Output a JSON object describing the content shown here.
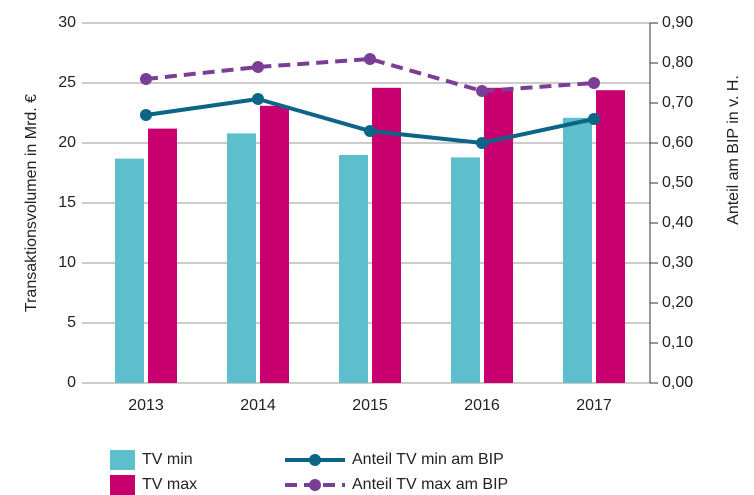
{
  "chart_data": {
    "type": "bar",
    "categories": [
      "2013",
      "2014",
      "2015",
      "2016",
      "2017"
    ],
    "ylabel": "Transaktionsvolumen in Mrd. €",
    "y2label": "Anteil am BIP in v. H.",
    "ylim": [
      0,
      30
    ],
    "yticks": [
      0,
      5,
      10,
      15,
      20,
      25,
      30
    ],
    "y2lim": [
      0,
      0.9
    ],
    "y2ticks": [
      {
        "value": 0,
        "label": "0,00"
      },
      {
        "value": 0.1,
        "label": "0,10"
      },
      {
        "value": 0.2,
        "label": "0,20"
      },
      {
        "value": 0.3,
        "label": "0,30"
      },
      {
        "value": 0.4,
        "label": "0,40"
      },
      {
        "value": 0.5,
        "label": "0,50"
      },
      {
        "value": 0.6,
        "label": "0,60"
      },
      {
        "value": 0.7,
        "label": "0,70"
      },
      {
        "value": 0.8,
        "label": "0,80"
      },
      {
        "value": 0.9,
        "label": "0,90"
      }
    ],
    "grid": true,
    "series": [
      {
        "name": "TV min",
        "type": "bar",
        "color": "#5dbfcc",
        "values": [
          18.7,
          20.8,
          19.0,
          18.8,
          22.1
        ]
      },
      {
        "name": "TV max",
        "type": "bar",
        "color": "#c8006f",
        "values": [
          21.2,
          23.1,
          24.6,
          24.6,
          24.4
        ]
      },
      {
        "name": "Anteil TV min am BIP",
        "type": "line",
        "axis": "y2",
        "color": "#0c6487",
        "dashed": false,
        "values": [
          0.67,
          0.71,
          0.63,
          0.6,
          0.66
        ]
      },
      {
        "name": "Anteil TV max am BIP",
        "type": "line",
        "axis": "y2",
        "color": "#7a3e96",
        "dashed": true,
        "values": [
          0.76,
          0.79,
          0.81,
          0.73,
          0.75
        ]
      }
    ]
  }
}
